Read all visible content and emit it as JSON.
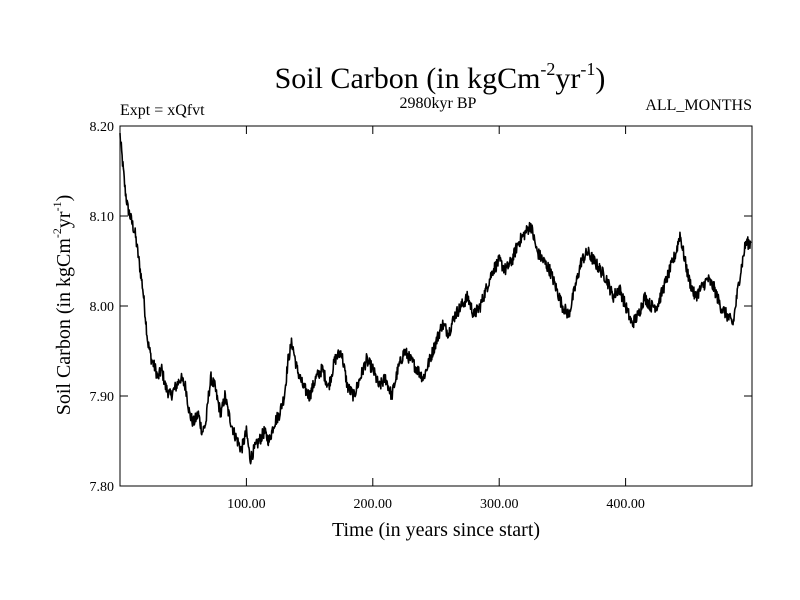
{
  "chart_data": {
    "type": "line",
    "title": {
      "main": "Soil Carbon (in kgCm",
      "sup1": "-2",
      "mid": "yr",
      "sup2": "-1",
      "end": ")"
    },
    "subtitle_left": "Expt = xQfvt",
    "subtitle_center": "2980kyr BP",
    "subtitle_right": "ALL_MONTHS",
    "xlabel": "Time (in years since start)",
    "ylabel": {
      "main": "Soil Carbon (in kgCm",
      "sup1": "-2",
      "mid": "yr",
      "sup2": "-1",
      "end": ")"
    },
    "xlim": [
      0,
      500
    ],
    "ylim": [
      7.8,
      8.2
    ],
    "xticks": [
      100,
      200,
      300,
      400
    ],
    "xtick_labels": [
      "100.00",
      "200.00",
      "300.00",
      "400.00"
    ],
    "yticks": [
      7.8,
      7.9,
      8.0,
      8.1,
      8.2
    ],
    "ytick_labels": [
      "7.80",
      "7.90",
      "8.00",
      "8.10",
      "8.20"
    ],
    "grid": false,
    "series": [
      {
        "name": "soil_carbon",
        "color": "#000000",
        "x": [
          0,
          2,
          4,
          6,
          8,
          10,
          12,
          14,
          16,
          18,
          20,
          22,
          25,
          28,
          30,
          33,
          36,
          40,
          44,
          48,
          52,
          55,
          58,
          62,
          65,
          68,
          70,
          72,
          75,
          78,
          80,
          83,
          86,
          90,
          93,
          96,
          100,
          103,
          106,
          110,
          114,
          118,
          122,
          126,
          130,
          133,
          136,
          140,
          145,
          150,
          155,
          160,
          165,
          170,
          175,
          180,
          185,
          190,
          195,
          200,
          205,
          210,
          215,
          220,
          225,
          230,
          235,
          240,
          245,
          250,
          255,
          260,
          265,
          270,
          275,
          280,
          285,
          290,
          295,
          300,
          305,
          310,
          315,
          320,
          325,
          330,
          335,
          340,
          345,
          350,
          355,
          360,
          365,
          370,
          375,
          380,
          385,
          390,
          395,
          400,
          405,
          410,
          415,
          420,
          425,
          430,
          435,
          440,
          443,
          447,
          450,
          455,
          460,
          465,
          470,
          475,
          480,
          485,
          490,
          495,
          499
        ],
        "y": [
          8.19,
          8.16,
          8.13,
          8.11,
          8.1,
          8.09,
          8.08,
          8.06,
          8.04,
          8.02,
          7.99,
          7.96,
          7.94,
          7.93,
          7.92,
          7.93,
          7.91,
          7.9,
          7.91,
          7.92,
          7.91,
          7.88,
          7.87,
          7.88,
          7.86,
          7.87,
          7.9,
          7.92,
          7.91,
          7.89,
          7.88,
          7.9,
          7.88,
          7.86,
          7.85,
          7.84,
          7.86,
          7.83,
          7.84,
          7.85,
          7.86,
          7.85,
          7.87,
          7.88,
          7.9,
          7.94,
          7.96,
          7.93,
          7.91,
          7.9,
          7.92,
          7.93,
          7.91,
          7.94,
          7.95,
          7.91,
          7.9,
          7.92,
          7.94,
          7.93,
          7.91,
          7.92,
          7.9,
          7.93,
          7.95,
          7.94,
          7.93,
          7.92,
          7.94,
          7.96,
          7.98,
          7.97,
          7.99,
          8.0,
          8.01,
          7.99,
          8.0,
          8.02,
          8.04,
          8.05,
          8.04,
          8.05,
          8.07,
          8.08,
          8.09,
          8.06,
          8.05,
          8.04,
          8.02,
          8.0,
          7.99,
          8.02,
          8.05,
          8.06,
          8.05,
          8.04,
          8.03,
          8.01,
          8.02,
          8.0,
          7.98,
          7.99,
          8.01,
          8.0,
          8.0,
          8.02,
          8.04,
          8.06,
          8.08,
          8.05,
          8.03,
          8.01,
          8.02,
          8.03,
          8.02,
          8.0,
          7.99,
          7.98,
          8.03,
          8.07,
          8.07
        ]
      }
    ]
  }
}
